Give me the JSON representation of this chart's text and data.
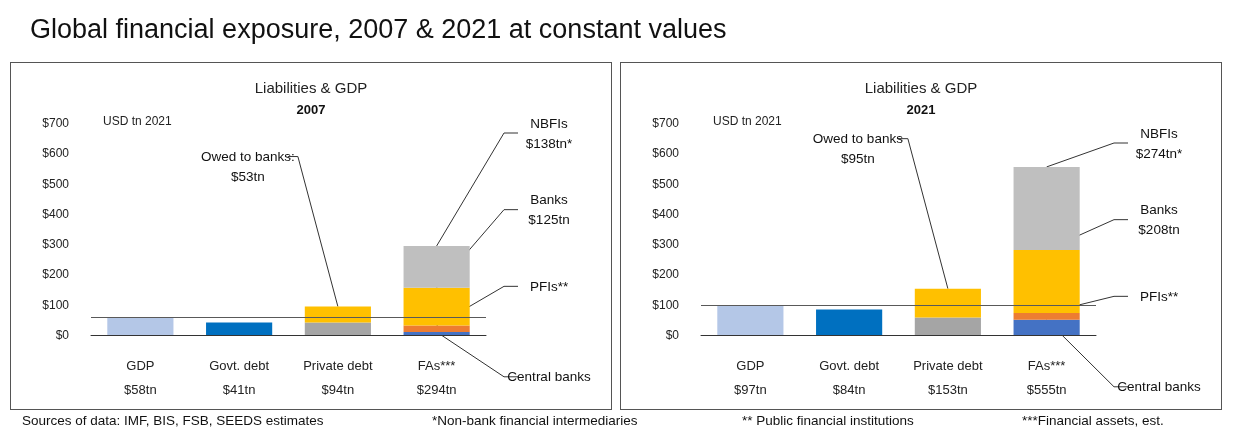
{
  "chart_data": [
    {
      "type": "bar",
      "title": "Liabilities & GDP",
      "subtitle": "2007",
      "ylabel": "USD tn 2021",
      "stacked": true,
      "grid": false,
      "categories": [
        "GDP\n$58tn",
        "Govt. debt\n$41tn",
        "Private debt\n$94tn",
        "FAs***\n$294tn"
      ],
      "ylim": [
        0,
        700
      ],
      "yticks": [
        {
          "value": 0,
          "label": "$0"
        },
        {
          "value": 100,
          "label": "$100"
        },
        {
          "value": 200,
          "label": "$200"
        },
        {
          "value": 300,
          "label": "$300"
        },
        {
          "value": 400,
          "label": "$400"
        },
        {
          "value": 500,
          "label": "$500"
        },
        {
          "value": 600,
          "label": "$600"
        },
        {
          "value": 700,
          "label": "$700"
        }
      ],
      "series": [
        {
          "colors": [
            "#b4c7e7",
            "#0070c0",
            "#a5a5a5",
            "#4472c4"
          ],
          "values": [
            58,
            41,
            41,
            10
          ]
        },
        {
          "color": "#ed7d31",
          "values": [
            null,
            null,
            null,
            21
          ]
        },
        {
          "color": "#ffc000",
          "values": [
            null,
            null,
            53,
            125
          ]
        },
        {
          "color": "#bfbfbf",
          "values": [
            null,
            null,
            null,
            138
          ]
        }
      ],
      "ref_lines": [
        {
          "axis": "y",
          "value": 58,
          "color": "#595959"
        }
      ],
      "annotations": [
        "Global financial exposure, 2007 & 2021 at constant values",
        "Sources of data: IMF, BIS, FSB, SEEDS estimates",
        "*Non-bank financial intermediaries",
        "** Public financial institutions",
        "***Financial assets, est.",
        {
          "text": "Owed to banks:\n$53tn",
          "x": "Private debt\n$94tn",
          "y": 94
        },
        {
          "text": "NBFIs\n$138tn*",
          "x": "FAs***\n$294tn",
          "y": 294
        },
        {
          "text": "Banks\n$125tn",
          "x": "FAs***\n$294tn",
          "y": 156
        },
        {
          "text": "PFIs**",
          "x": "FAs***\n$294tn",
          "y": 31
        },
        {
          "text": "Central banks",
          "x": "FAs***\n$294tn",
          "y": 10
        }
      ]
    },
    {
      "type": "bar",
      "title": "Liabilities & GDP",
      "subtitle": "2021",
      "ylabel": "USD tn 2021",
      "stacked": true,
      "grid": false,
      "categories": [
        "GDP\n$97tn",
        "Govt. debt\n$84tn",
        "Private debt\n$153tn",
        "FAs***\n$555tn"
      ],
      "ylim": [
        0,
        700
      ],
      "yticks": [
        {
          "value": 0,
          "label": "$0"
        },
        {
          "value": 100,
          "label": "$100"
        },
        {
          "value": 200,
          "label": "$200"
        },
        {
          "value": 300,
          "label": "$300"
        },
        {
          "value": 400,
          "label": "$400"
        },
        {
          "value": 500,
          "label": "$500"
        },
        {
          "value": 600,
          "label": "$600"
        },
        {
          "value": 700,
          "label": "$700"
        }
      ],
      "series": [
        {
          "colors": [
            "#b4c7e7",
            "#0070c0",
            "#a5a5a5",
            "#4472c4"
          ],
          "values": [
            97,
            84,
            58,
            50
          ]
        },
        {
          "color": "#ed7d31",
          "values": [
            null,
            null,
            null,
            23
          ]
        },
        {
          "color": "#ffc000",
          "values": [
            null,
            null,
            95,
            208
          ]
        },
        {
          "color": "#bfbfbf",
          "values": [
            null,
            null,
            null,
            274
          ]
        }
      ],
      "ref_lines": [
        {
          "axis": "y",
          "value": 97,
          "color": "#595959"
        }
      ],
      "annotations": [
        {
          "text": "Owed to banks\n$95tn",
          "x": "Private debt\n$153tn",
          "y": 153
        },
        {
          "text": "NBFIs\n$274tn*",
          "x": "FAs***\n$555tn",
          "y": 555
        },
        {
          "text": "Banks\n$208tn",
          "x": "FAs***\n$555tn",
          "y": 281
        },
        {
          "text": "PFIs**",
          "x": "FAs***\n$555tn",
          "y": 73
        },
        {
          "text": "Central banks",
          "x": "FAs***\n$555tn",
          "y": 50
        }
      ]
    }
  ]
}
